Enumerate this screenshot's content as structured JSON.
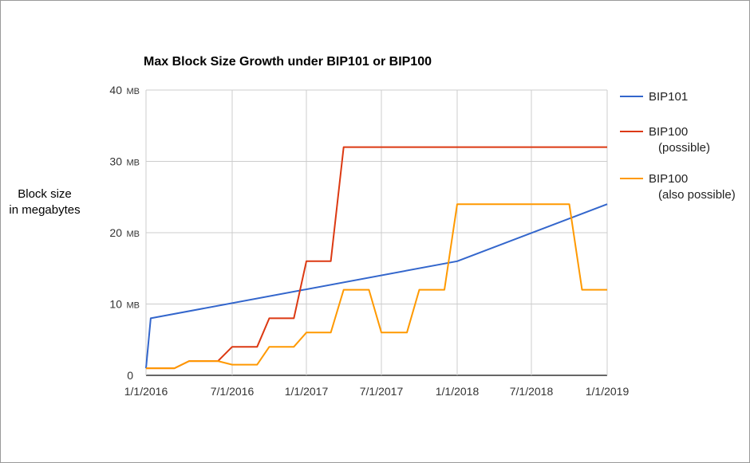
{
  "chart_data": {
    "type": "line",
    "title": "Max Block Size Growth under BIP101 or BIP100",
    "ylabel_lines": [
      "Block size",
      "in megabytes"
    ],
    "xlabel": "",
    "ylim": [
      0,
      40
    ],
    "y_unit": "MB",
    "y_ticks": [
      {
        "value": 0,
        "label": "0",
        "unit": ""
      },
      {
        "value": 10,
        "label": "10",
        "unit": "MB"
      },
      {
        "value": 20,
        "label": "20",
        "unit": "MB"
      },
      {
        "value": 30,
        "label": "30",
        "unit": "MB"
      },
      {
        "value": 40,
        "label": "40",
        "unit": "MB"
      }
    ],
    "x_ticks": [
      "1/1/2016",
      "7/1/2016",
      "1/1/2017",
      "7/1/2017",
      "1/1/2018",
      "7/1/2018",
      "1/1/2019"
    ],
    "xlim": [
      "2015-12-01",
      "2019-01-01"
    ],
    "grid": true,
    "legend_position": "right",
    "series": [
      {
        "name": "BIP101",
        "legend_lines": [
          "BIP101"
        ],
        "color": "#3366cc",
        "points": [
          [
            "2015-12-01",
            1
          ],
          [
            "2016-01-11",
            8
          ],
          [
            "2018-01-01",
            16
          ],
          [
            "2019-01-01",
            24
          ]
        ]
      },
      {
        "name": "BIP100 (possible)",
        "legend_lines": [
          "BIP100",
          "(possible)"
        ],
        "color": "#dc3912",
        "points": [
          [
            "2015-12-01",
            1
          ],
          [
            "2016-03-01",
            1
          ],
          [
            "2016-04-01",
            2
          ],
          [
            "2016-06-01",
            2
          ],
          [
            "2016-07-01",
            4
          ],
          [
            "2016-09-01",
            4
          ],
          [
            "2016-10-01",
            8
          ],
          [
            "2016-12-01",
            8
          ],
          [
            "2017-01-01",
            16
          ],
          [
            "2017-03-01",
            16
          ],
          [
            "2017-04-01",
            32
          ],
          [
            "2019-01-01",
            32
          ]
        ]
      },
      {
        "name": "BIP100 (also possible)",
        "legend_lines": [
          "BIP100",
          "(also  possible)"
        ],
        "color": "#ff9900",
        "points": [
          [
            "2015-12-01",
            1
          ],
          [
            "2016-03-01",
            1
          ],
          [
            "2016-04-01",
            2
          ],
          [
            "2016-06-01",
            2
          ],
          [
            "2016-07-01",
            1.5
          ],
          [
            "2016-09-01",
            1.5
          ],
          [
            "2016-10-01",
            4
          ],
          [
            "2016-12-01",
            4
          ],
          [
            "2017-01-01",
            6
          ],
          [
            "2017-03-01",
            6
          ],
          [
            "2017-04-01",
            12
          ],
          [
            "2017-06-01",
            12
          ],
          [
            "2017-07-01",
            6
          ],
          [
            "2017-09-01",
            6
          ],
          [
            "2017-10-01",
            12
          ],
          [
            "2017-12-01",
            12
          ],
          [
            "2018-01-01",
            24
          ],
          [
            "2018-10-01",
            24
          ],
          [
            "2018-11-01",
            12
          ],
          [
            "2019-01-01",
            12
          ]
        ]
      }
    ]
  }
}
